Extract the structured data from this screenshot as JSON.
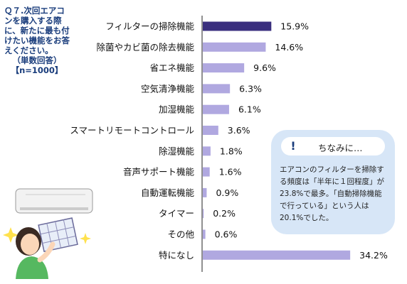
{
  "question": {
    "lines": [
      "Ｑ７.次回エアコンを購入する際に、新たに最も付けたい機能をお答えください。",
      "（単数回答）",
      "【n=1000】"
    ]
  },
  "chart_data": {
    "type": "bar",
    "orientation": "horizontal",
    "categories": [
      "フィルターの掃除機能",
      "除菌やカビ菌の除去機能",
      "省エネ機能",
      "空気清浄機能",
      "加湿機能",
      "スマートリモートコントロール",
      "除湿機能",
      "音声サポート機能",
      "自動運転機能",
      "タイマー",
      "その他",
      "特になし"
    ],
    "values": [
      15.9,
      14.6,
      9.6,
      6.3,
      6.1,
      3.6,
      1.8,
      1.6,
      0.9,
      0.2,
      0.6,
      34.2
    ],
    "value_labels": [
      "15.9%",
      "14.6%",
      "9.6%",
      "6.3%",
      "6.1%",
      "3.6%",
      "1.8%",
      "1.6%",
      "0.9%",
      "0.2%",
      "0.6%",
      "34.2%"
    ],
    "highlight_index": 0,
    "highlight_color": "#3a2f7e",
    "bar_color": "#b0a8e0",
    "title": "",
    "xlabel": "",
    "ylabel": "",
    "xlim": [
      0,
      35
    ],
    "grid": false
  },
  "note": {
    "icon": "exclamation-icon",
    "title": "ちなみに…",
    "body": "エアコンのフィルターを掃除する頻度は「半年に１回程度」が23.8%で最多。「自動掃除機能で行っている」という人は20.1%でした。"
  },
  "colors": {
    "accent": "#1a3d7c",
    "note_bg": "#d7e6f7"
  }
}
